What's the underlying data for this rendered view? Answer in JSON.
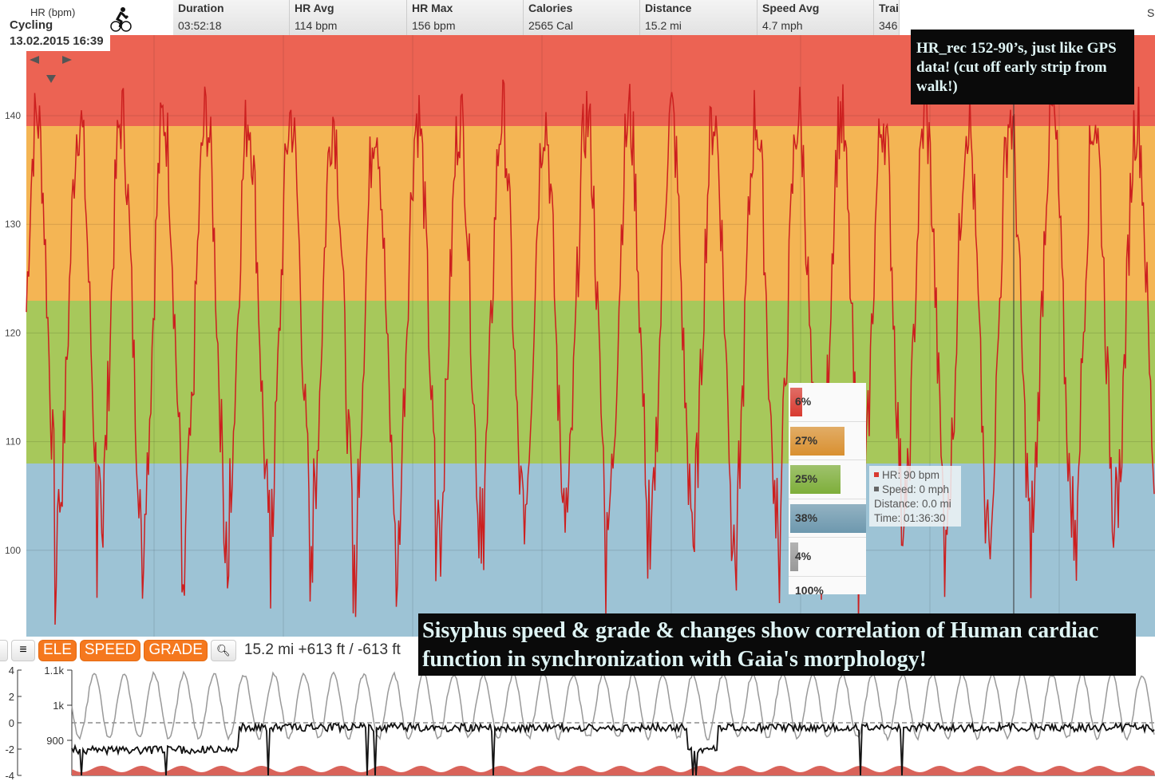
{
  "activity": {
    "unit_label": "HR (bpm)",
    "sport": "Cycling",
    "datetime": "13.02.2015 16:39",
    "icon": "cyclist-icon"
  },
  "stats": [
    {
      "title": "Duration",
      "value": "03:52:18"
    },
    {
      "title": "HR Avg",
      "value": "114   bpm"
    },
    {
      "title": "HR Max",
      "value": "156   bpm"
    },
    {
      "title": "Calories",
      "value": "2565   Cal"
    },
    {
      "title": "Distance",
      "value": "15.2   mi"
    },
    {
      "title": "Speed Avg",
      "value": "4.7   mph"
    },
    {
      "title": "Trai",
      "value": "346"
    }
  ],
  "top_right_cut": "S",
  "hr_axis": {
    "ticks": [
      "140",
      "130",
      "120",
      "110",
      "100"
    ]
  },
  "zone_colors": {
    "red": "#ec6353",
    "orange": "#f4b554",
    "green": "#a7c85b",
    "blue": "#9dc3d5",
    "line": "#cc1f1f"
  },
  "zones": [
    {
      "pct": "6%",
      "fill": 0.06,
      "color": "#d83a30"
    },
    {
      "pct": "27%",
      "fill": 0.27,
      "color": "#d99030"
    },
    {
      "pct": "25%",
      "fill": 0.25,
      "color": "#7eae3a"
    },
    {
      "pct": "38%",
      "fill": 0.38,
      "color": "#6d98ae"
    },
    {
      "pct": "4%",
      "fill": 0.04,
      "color": "#999999"
    }
  ],
  "zones_total": "100%",
  "tooltip": {
    "hr": "HR: 90 bpm",
    "speed": "Speed: 0 mph",
    "distance": "Distance: 0.0 mi",
    "time": "Time: 01:36:30"
  },
  "note_top": "HR_rec 152-90’s, just like GPS data! (cut off early strip from walk!)",
  "note_bottom": "Sisyphus speed & grade & changes show correlation of Human cardiac function in synchronization with Gaia's morphology!",
  "toolbar": {
    "ele": "ELE",
    "speed": "SPEED",
    "grade": "GRADE",
    "summary": "15.2 mi +613 ft / -613 ft"
  },
  "profile": {
    "grade_ticks": [
      "4",
      "2",
      "0",
      "-2",
      "-4"
    ],
    "elev_ticks": [
      "1.1k",
      "1k",
      "900"
    ]
  }
}
